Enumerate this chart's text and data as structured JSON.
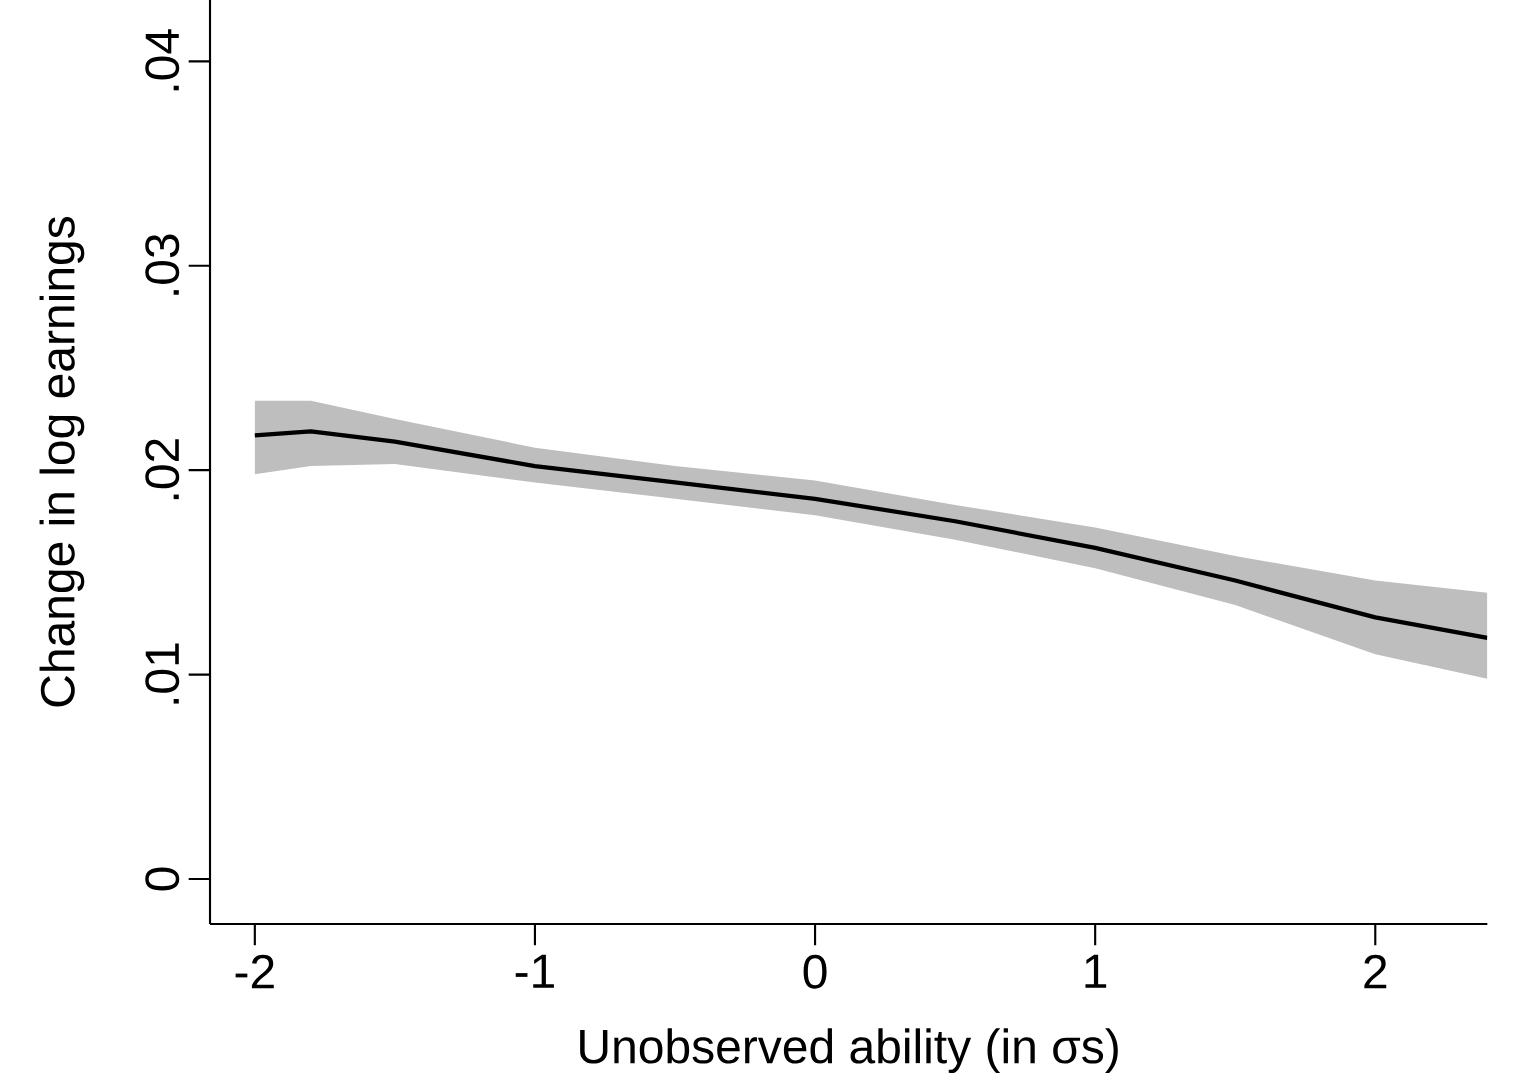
{
  "chart_data": {
    "type": "line",
    "xlabel": "Unobserved ability (in σs)",
    "ylabel": "Change in log earnings",
    "x": [
      -2,
      -1.8,
      -1.5,
      -1,
      -0.5,
      0,
      0.5,
      1,
      1.5,
      2,
      2.4
    ],
    "series": [
      {
        "color": "#000000",
        "values": [
          0.0217,
          0.0219,
          0.0214,
          0.0202,
          0.0194,
          0.0186,
          0.0175,
          0.0162,
          0.0146,
          0.0128,
          0.0118
        ],
        "lower": [
          0.0198,
          0.0202,
          0.0203,
          0.0194,
          0.0186,
          0.0178,
          0.0166,
          0.0152,
          0.0134,
          0.011,
          0.0098
        ],
        "upper": [
          0.0234,
          0.0234,
          0.0225,
          0.0211,
          0.0202,
          0.0195,
          0.0183,
          0.0172,
          0.0158,
          0.0146,
          0.014
        ]
      }
    ],
    "xlim": [
      -2.16,
      2.4
    ],
    "ylim": [
      -0.0022,
      0.043
    ],
    "xticks": [
      -2,
      -1,
      0,
      1,
      2
    ],
    "yticks": [
      0,
      {
        "value": 0.01,
        "label": ".01"
      },
      {
        "value": 0.02,
        "label": ".02"
      },
      {
        "value": 0.03,
        "label": ".03"
      },
      {
        "value": 0.04,
        "label": ".04"
      }
    ],
    "grid": false,
    "line_style": "solid",
    "marker": "none"
  }
}
